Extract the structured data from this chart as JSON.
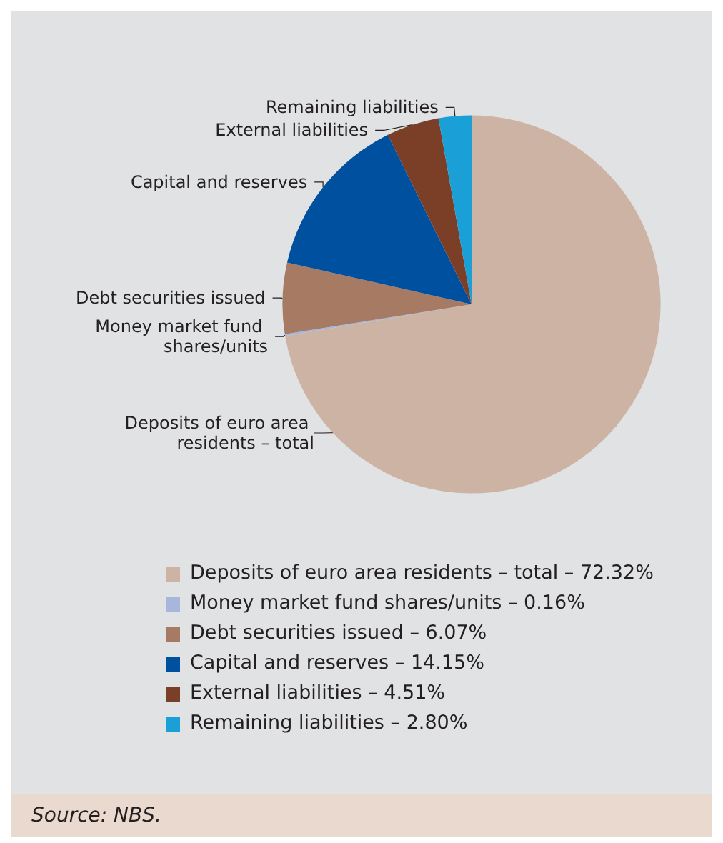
{
  "chart_data": {
    "type": "pie",
    "categories": [
      "Deposits of euro area residents – total",
      "Money market fund shares/units",
      "Debt securities issued",
      "Capital and reserves",
      "External liabilities",
      "Remaining liabilities"
    ],
    "values": [
      72.32,
      0.16,
      6.07,
      14.15,
      4.51,
      2.8
    ],
    "colors": [
      "#cdb3a4",
      "#a9b6dc",
      "#a67a63",
      "#0050a0",
      "#7b3f27",
      "#1a9fd6"
    ],
    "value_labels": [
      "72.32%",
      "0.16%",
      "6.07%",
      "14.15%",
      "4.51%",
      "2.80%"
    ],
    "legend": "bottom",
    "annotations": [
      "Source: NBS.",
      "–"
    ]
  }
}
